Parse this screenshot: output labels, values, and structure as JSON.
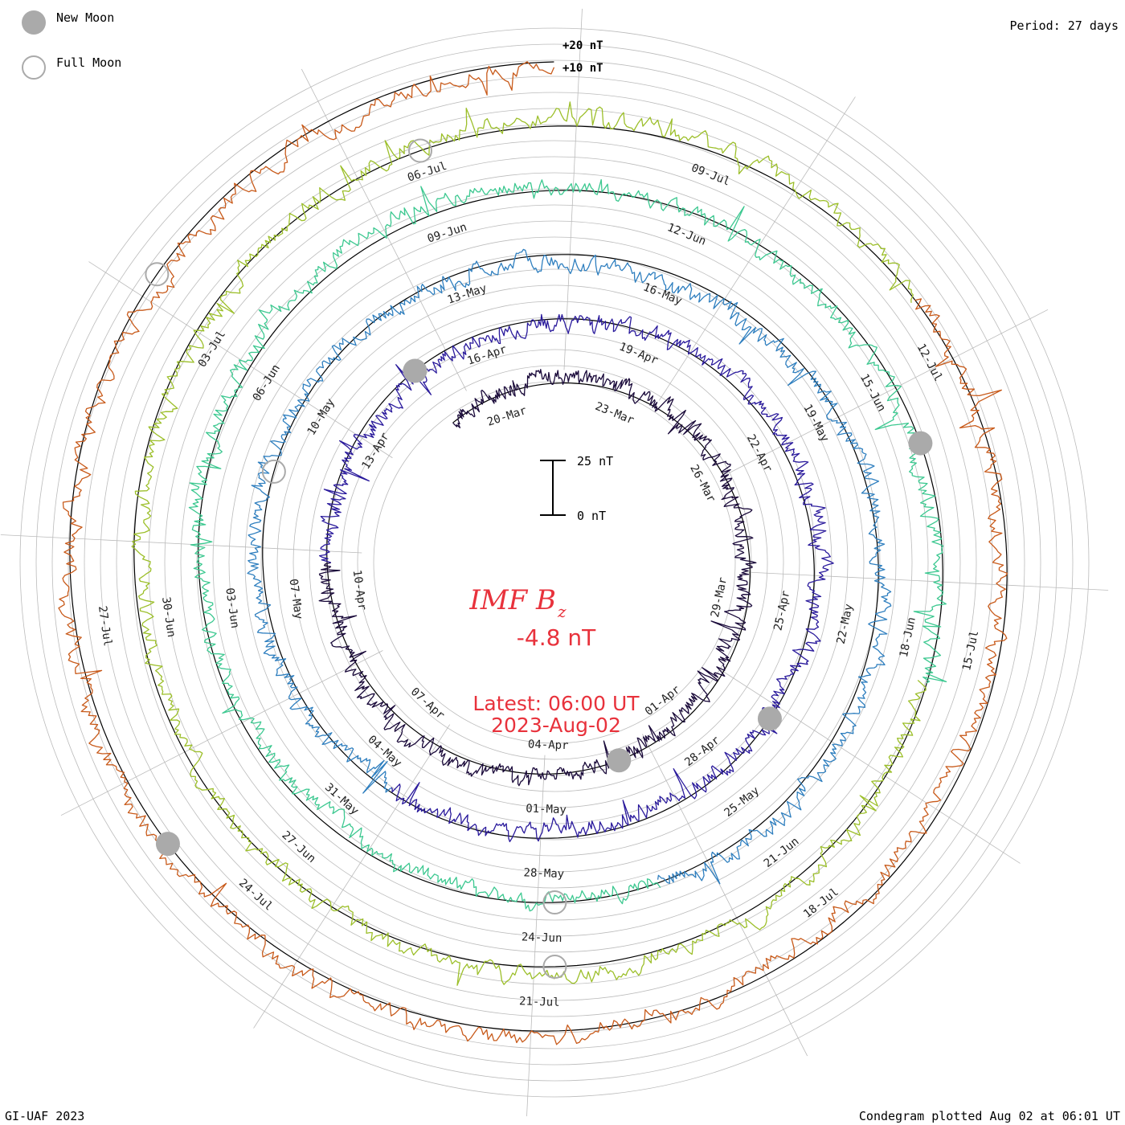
{
  "legend": {
    "new_moon_label": "New Moon",
    "full_moon_label": "Full Moon"
  },
  "period_label": "Period: 27 days",
  "footer": {
    "credit": "GI-UAF 2023",
    "plotted": "Condegram plotted Aug 02 at 06:01 UT"
  },
  "scale": {
    "ring_plus20": "+20 nT",
    "ring_plus10": "+10 nT",
    "bar_top": "25 nT",
    "bar_bottom": "0 nT"
  },
  "center": {
    "title": "IMF B",
    "title_sub": "z",
    "value": "-4.8 nT",
    "latest": "Latest: 06:00 UT",
    "date": "2023-Aug-02"
  },
  "colors": {
    "new_moon": "#aaaaaa",
    "full_moon_stroke": "#aaaaaa",
    "grid": "#bbbbbb",
    "baseline": "#000000",
    "accent": "#e8323c"
  },
  "chart_data": {
    "type": "line",
    "projection": "spiral condegram",
    "period_days": 27,
    "quantity": "IMF Bz",
    "units": "nT",
    "latest_value": -4.8,
    "rotations": [
      {
        "color": "#1a0a3a",
        "dates": [
          "20-Mar",
          "23-Mar",
          "26-Mar",
          "29-Mar"
        ]
      },
      {
        "color": "#2a1a9c",
        "dates": [
          "01-Apr",
          "04-Apr",
          "07-Apr",
          "10-Apr",
          "13-Apr",
          "16-Apr",
          "19-Apr",
          "22-Apr",
          "25-Apr"
        ]
      },
      {
        "color": "#2f7fbf",
        "dates": [
          "28-Apr",
          "01-May",
          "04-May",
          "07-May",
          "10-May",
          "13-May",
          "16-May",
          "19-May",
          "22-May"
        ]
      },
      {
        "color": "#3cc890",
        "dates": [
          "25-May",
          "28-May",
          "31-May",
          "03-Jun",
          "06-Jun",
          "09-Jun",
          "12-Jun",
          "15-Jun",
          "18-Jun"
        ]
      },
      {
        "color": "#9cbf2a",
        "dates": [
          "21-Jun",
          "24-Jun",
          "27-Jun",
          "30-Jun",
          "03-Jul",
          "06-Jul",
          "09-Jul",
          "12-Jul",
          "15-Jul"
        ]
      },
      {
        "color": "#c85a1a",
        "dates": [
          "18-Jul",
          "21-Jul",
          "24-Jul",
          "27-Jul"
        ]
      }
    ]
  }
}
